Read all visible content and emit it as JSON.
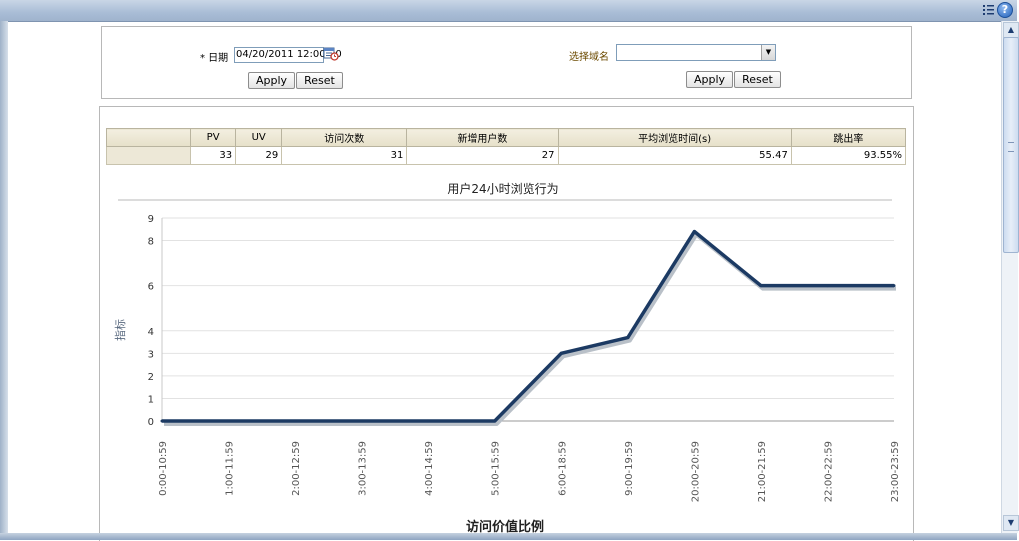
{
  "toolbar": {
    "help_label": "?"
  },
  "filters": {
    "date_label": "* 日期",
    "date_value": "04/20/2011 12:00:00",
    "domain_label": "选择域名",
    "domain_value": "",
    "apply_label": "Apply",
    "reset_label": "Reset"
  },
  "stats": {
    "headers": [
      "",
      "PV",
      "UV",
      "访问次数",
      "新增用户数",
      "平均浏览时间(s)",
      "跳出率"
    ],
    "row": [
      "",
      "33",
      "29",
      "31",
      "27",
      "55.47",
      "93.55%"
    ]
  },
  "chart_data": {
    "type": "line",
    "title": "用户24小时浏览行为",
    "ylabel": "指标",
    "xlabel": "",
    "ylim": [
      0,
      9
    ],
    "yticks": [
      0,
      1,
      2,
      3,
      4,
      6,
      8,
      9
    ],
    "grid": true,
    "categories": [
      "0:00-10:59",
      "1:00-11:59",
      "2:00-12:59",
      "3:00-13:59",
      "4:00-14:59",
      "5:00-15:59",
      "6:00-18:59",
      "9:00-19:59",
      "20:00-20:59",
      "21:00-21:59",
      "22:00-22:59",
      "23:00-23:59"
    ],
    "series": [
      {
        "values": [
          0,
          0,
          0,
          0,
          0,
          0,
          3,
          3.7,
          8.4,
          6,
          6,
          6
        ],
        "color": "#1c3a63"
      }
    ]
  },
  "next_section_title": "访问价值比例"
}
